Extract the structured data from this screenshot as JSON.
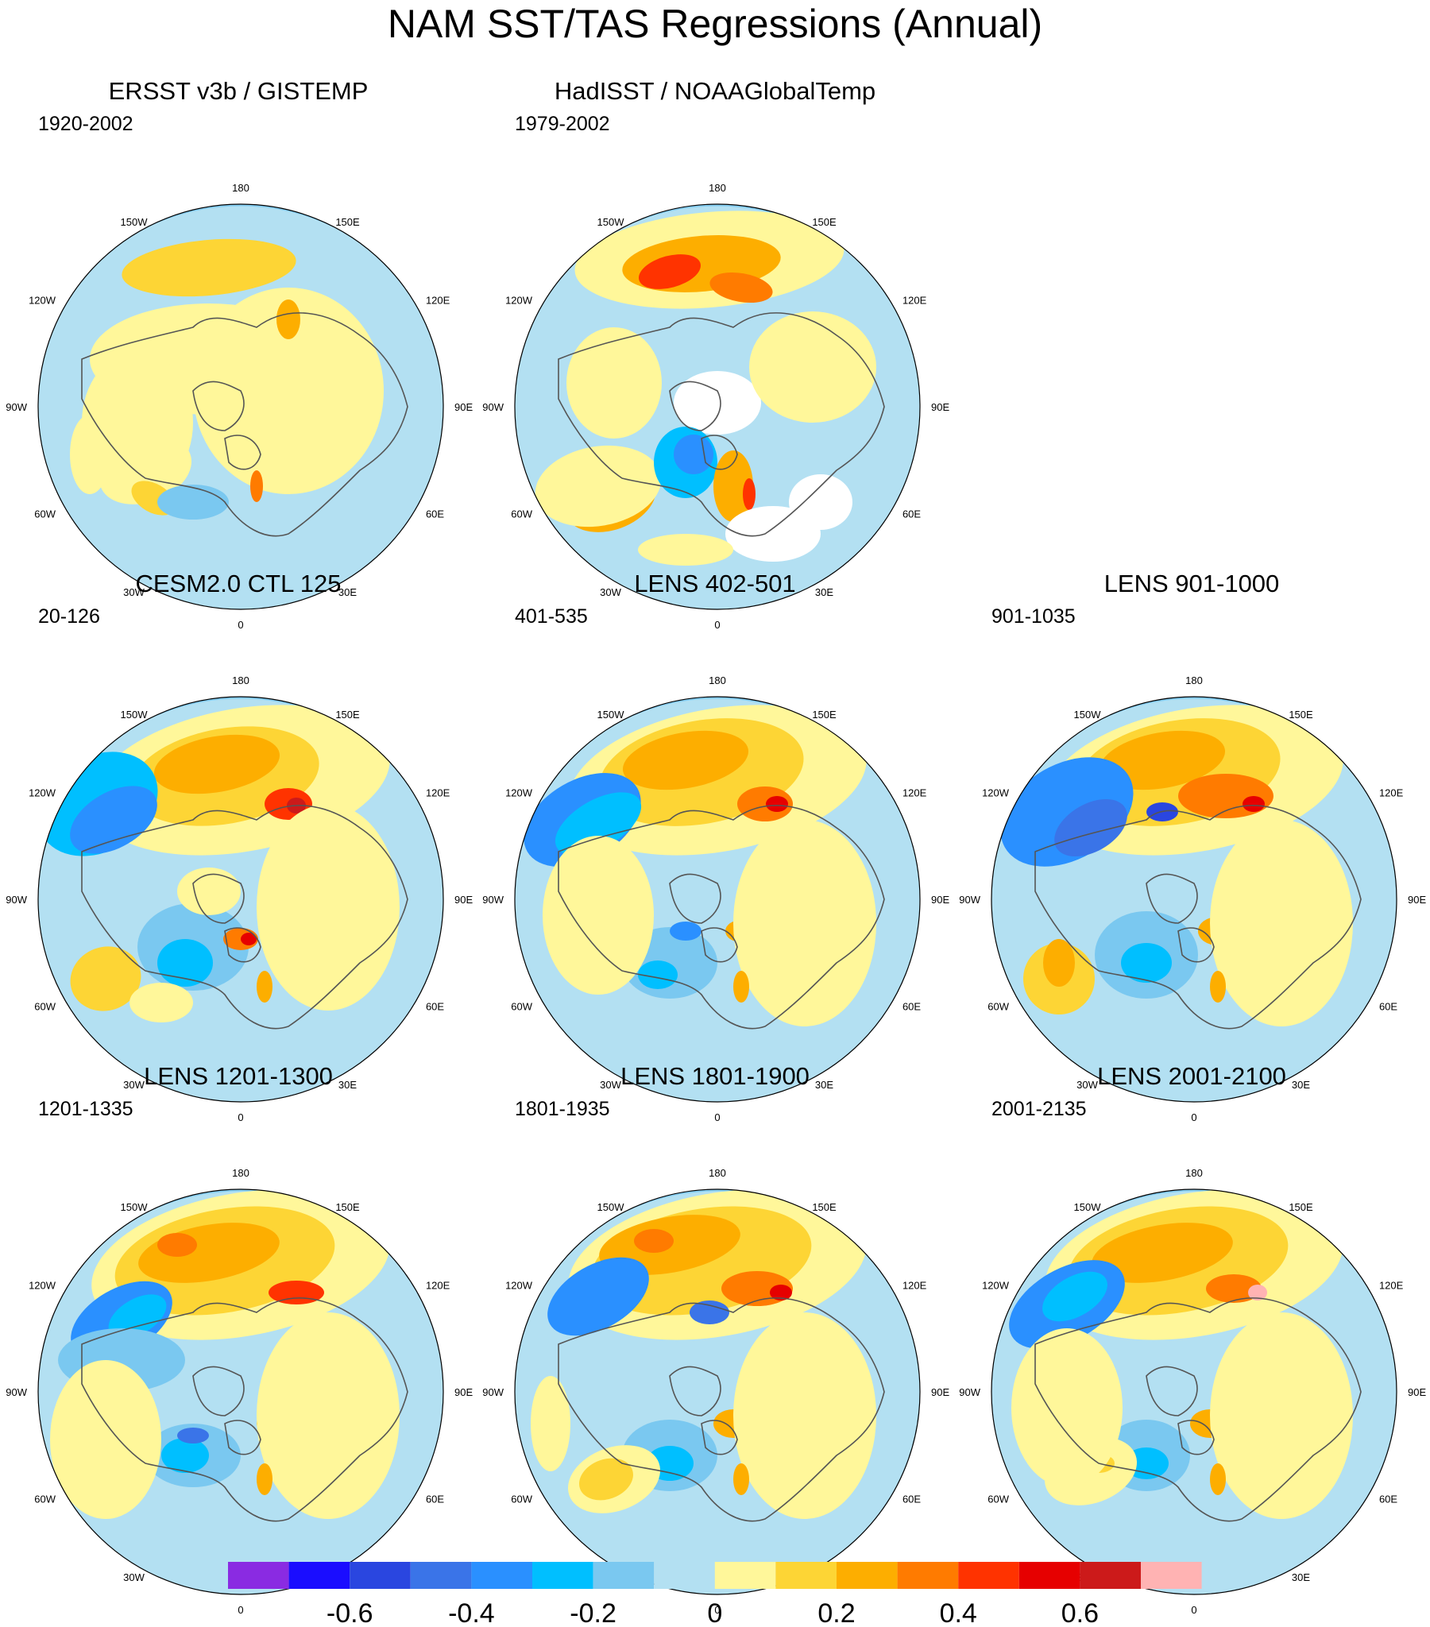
{
  "title": "NAM SST/TAS Regressions (Annual)",
  "lon_labels": [
    "180",
    "150E",
    "120E",
    "90E",
    "60E",
    "30E",
    "0",
    "30W",
    "60W",
    "90W",
    "120W",
    "150W"
  ],
  "panels": [
    {
      "title": "ERSST v3b / GISTEMP",
      "period": "1920-2002"
    },
    {
      "title": "HadISST / NOAAGlobalTemp",
      "period": "1979-2002"
    },
    {
      "title": "CESM2.0 CTL 125",
      "period": "20-126"
    },
    {
      "title": "LENS 402-501",
      "period": "401-535"
    },
    {
      "title": "LENS 901-1000",
      "period": "901-1035"
    },
    {
      "title": "LENS 1201-1300",
      "period": "1201-1335"
    },
    {
      "title": "LENS 1801-1900",
      "period": "1801-1935"
    },
    {
      "title": "LENS 2001-2100",
      "period": "2001-2135"
    }
  ],
  "colorbar": {
    "colors": [
      "#8a2be2",
      "#1a0dff",
      "#2a46e0",
      "#3a74e8",
      "#2a90ff",
      "#00bfff",
      "#7ac8f0",
      "#b3e0f2",
      "#fff79a",
      "#fdd535",
      "#fdae00",
      "#ff7b00",
      "#ff3300",
      "#e60000",
      "#cc1a1a",
      "#ffb3b3"
    ],
    "labels": [
      "-0.6",
      "-0.4",
      "-0.2",
      "0",
      "0.2",
      "0.4",
      "0.6"
    ]
  },
  "chart_data": {
    "type": "polar stereographic contour map grid",
    "variable": "NAM SST/TAS regression (annual)",
    "projection": "north polar stereographic, 0 at bottom, 180 at top",
    "color_levels": [
      -0.7,
      -0.6,
      -0.5,
      -0.4,
      -0.3,
      -0.2,
      -0.1,
      0,
      0.1,
      0.2,
      0.3,
      0.4,
      0.5,
      0.6,
      0.7
    ],
    "panel_count": 8,
    "grid": "3x3 with top-right empty"
  }
}
